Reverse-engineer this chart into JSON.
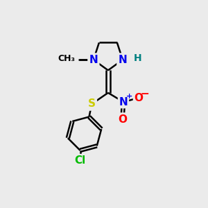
{
  "background_color": "#ebebeb",
  "atom_colors": {
    "C": "#000000",
    "N": "#0000ee",
    "S": "#cccc00",
    "O": "#ff0000",
    "Cl": "#00bb00",
    "H": "#008080"
  },
  "bond_color": "#000000",
  "bond_width": 1.8,
  "font_size": 11,
  "fig_size": [
    3.0,
    3.0
  ],
  "dpi": 100
}
